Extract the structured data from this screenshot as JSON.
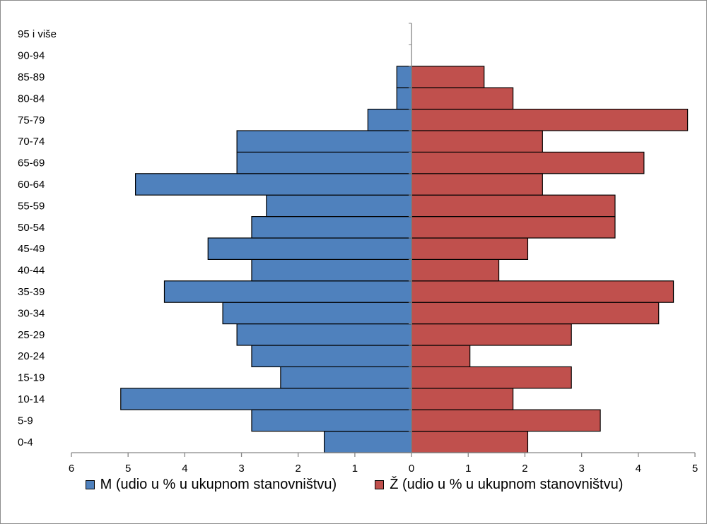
{
  "chart_data": {
    "type": "bar",
    "orientation": "horizontal",
    "categories": [
      "0-4",
      "5-9",
      "10-14",
      "15-19",
      "20-24",
      "25-29",
      "30-34",
      "35-39",
      "40-44",
      "45-49",
      "50-54",
      "55-59",
      "60-64",
      "65-69",
      "70-74",
      "75-79",
      "80-84",
      "85-89",
      "90-94",
      "95 i više"
    ],
    "series": [
      {
        "name": "M (udio u % u ukupnom stanovništvu)",
        "color": "#4f81bd",
        "values": [
          1.54,
          2.82,
          5.13,
          2.31,
          2.82,
          3.08,
          3.33,
          4.36,
          2.82,
          3.59,
          2.82,
          2.56,
          4.87,
          3.08,
          3.08,
          0.77,
          0.26,
          0.26,
          0,
          0
        ]
      },
      {
        "name": "Ž (udio u % u ukupnom stanovništvu)",
        "color": "#c0504d",
        "values": [
          2.05,
          3.33,
          1.79,
          2.82,
          1.03,
          2.82,
          4.36,
          4.62,
          1.54,
          2.05,
          3.59,
          3.59,
          2.31,
          4.1,
          2.31,
          4.87,
          1.79,
          1.28,
          0,
          0
        ]
      }
    ],
    "xaxis": {
      "range": [
        -6,
        5
      ],
      "tick_values": [
        -6,
        -5,
        -4,
        -3,
        -2,
        -1,
        0,
        1,
        2,
        3,
        4,
        5
      ],
      "tick_labels": [
        "6",
        "5",
        "4",
        "3",
        "2",
        "1",
        "0",
        "1",
        "2",
        "3",
        "4",
        "5"
      ]
    },
    "grid": false,
    "legend_position": "bottom"
  }
}
